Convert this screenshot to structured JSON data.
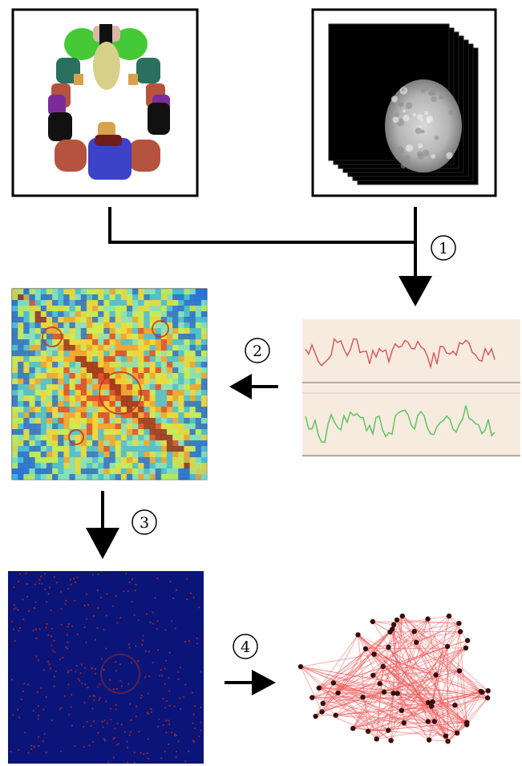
{
  "steps": [
    {
      "id": "1",
      "label": "1"
    },
    {
      "id": "2",
      "label": "2"
    },
    {
      "id": "3",
      "label": "3"
    },
    {
      "id": "4",
      "label": "4"
    }
  ],
  "colors": {
    "arrow": "#000000",
    "mri_bg": "#000000",
    "signal_bg": "#f7ebe0",
    "signal_red": "#d65b5b",
    "signal_green": "#5ec45e",
    "binary_bg": "#0b1478",
    "binary_dot": "#8a2a35",
    "network_edge": "#ee5b5b",
    "network_node": "#3a0d0d"
  },
  "atlas_regions": [
    {
      "color": "#46c936",
      "name": "region-green"
    },
    {
      "color": "#d6d08a",
      "name": "region-khaki"
    },
    {
      "color": "#d9b8a6",
      "name": "region-tan"
    },
    {
      "color": "#2b6f5e",
      "name": "region-teal"
    },
    {
      "color": "#7a2d9a",
      "name": "region-purple"
    },
    {
      "color": "#b5533f",
      "name": "region-brown"
    },
    {
      "color": "#3c43c9",
      "name": "region-blue"
    },
    {
      "color": "#111111",
      "name": "region-black"
    },
    {
      "color": "#d6a24a",
      "name": "region-orange"
    },
    {
      "color": "#6e1c1c",
      "name": "region-maroon"
    }
  ]
}
